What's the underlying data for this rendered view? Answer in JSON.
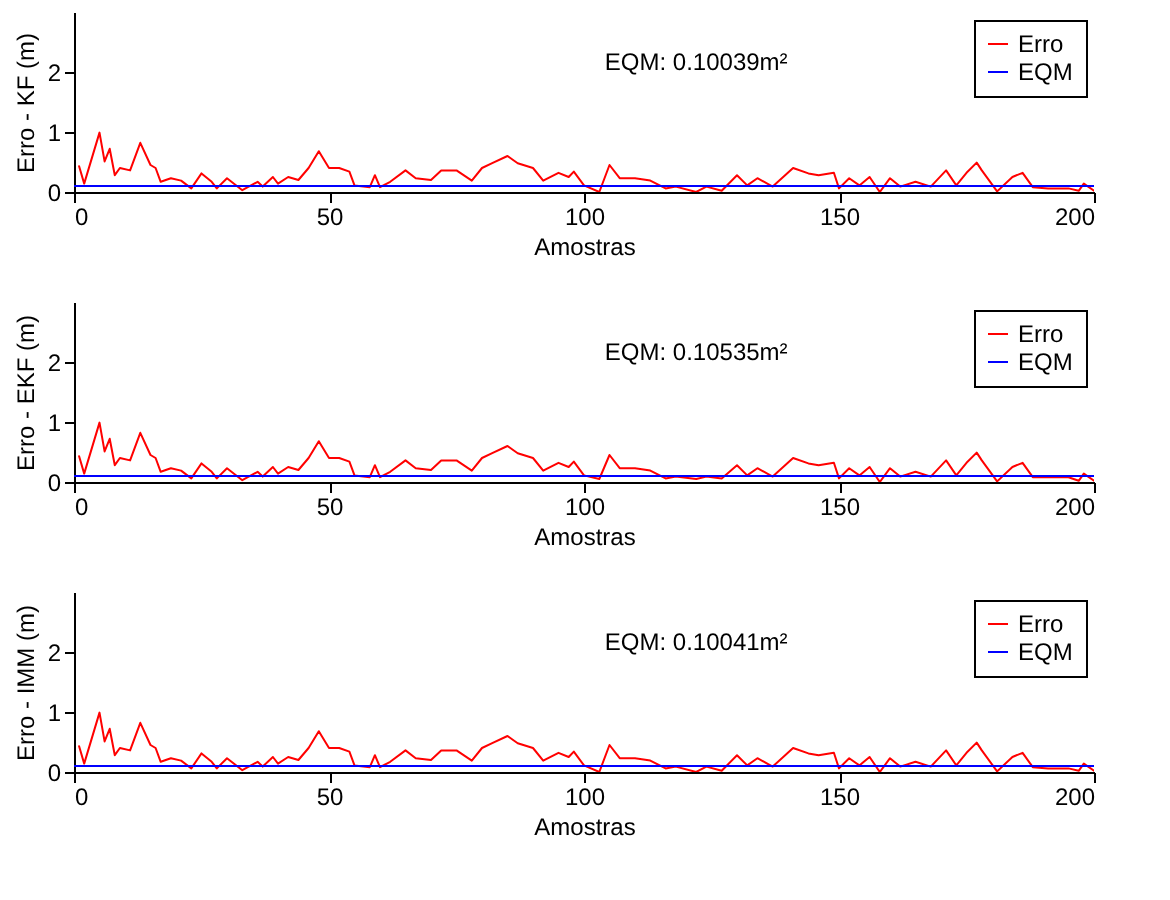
{
  "chart_data": [
    {
      "type": "line",
      "xlabel": "Amostras",
      "ylabel": "Erro - KF (m)",
      "xlim": [
        0,
        200
      ],
      "ylim": [
        0,
        3
      ],
      "xticks": [
        0,
        50,
        100,
        150,
        200
      ],
      "yticks": [
        0,
        1,
        2
      ],
      "grid": false,
      "legend": "top right",
      "annotations": [
        "EQM: 0.10039m²"
      ],
      "series": [
        {
          "name": "Erro",
          "color": "#ff0000",
          "x": [
            1,
            2,
            5,
            6,
            7,
            8,
            9,
            11,
            13,
            15,
            16,
            17,
            19,
            21,
            23,
            25,
            27,
            28,
            30,
            33,
            36,
            37,
            39,
            40,
            42,
            44,
            46,
            48,
            50,
            52,
            54,
            55,
            58,
            59,
            60,
            62,
            65,
            67,
            70,
            72,
            75,
            78,
            80,
            82,
            85,
            87,
            90,
            92,
            95,
            97,
            98,
            100,
            103,
            105,
            107,
            110,
            113,
            116,
            118,
            122,
            124,
            127,
            130,
            132,
            134,
            137,
            141,
            144,
            146,
            149,
            150,
            152,
            154,
            156,
            158,
            160,
            162,
            165,
            168,
            171,
            173,
            175,
            177,
            178,
            181,
            184,
            186,
            188,
            191,
            195,
            197,
            198,
            200
          ],
          "values": [
            0.43,
            0.14,
            0.99,
            0.51,
            0.72,
            0.28,
            0.4,
            0.36,
            0.82,
            0.45,
            0.4,
            0.17,
            0.23,
            0.19,
            0.06,
            0.31,
            0.17,
            0.06,
            0.23,
            0.03,
            0.17,
            0.09,
            0.25,
            0.14,
            0.25,
            0.2,
            0.4,
            0.68,
            0.4,
            0.4,
            0.34,
            0.11,
            0.08,
            0.28,
            0.08,
            0.17,
            0.36,
            0.23,
            0.2,
            0.36,
            0.36,
            0.19,
            0.4,
            0.48,
            0.6,
            0.48,
            0.4,
            0.19,
            0.32,
            0.25,
            0.34,
            0.11,
            0.0,
            0.45,
            0.23,
            0.23,
            0.19,
            0.06,
            0.09,
            0.0,
            0.09,
            0.02,
            0.28,
            0.11,
            0.23,
            0.09,
            0.4,
            0.31,
            0.28,
            0.32,
            0.06,
            0.23,
            0.11,
            0.25,
            0.0,
            0.23,
            0.09,
            0.17,
            0.09,
            0.36,
            0.11,
            0.32,
            0.49,
            0.36,
            0.01,
            0.25,
            0.32,
            0.08,
            0.06,
            0.06,
            0.02,
            0.14,
            0.02
          ]
        },
        {
          "name": "EQM",
          "color": "#0000ff",
          "x": [
            0,
            200
          ],
          "values": [
            0.1,
            0.1
          ]
        }
      ]
    },
    {
      "type": "line",
      "xlabel": "Amostras",
      "ylabel": "Erro - EKF (m)",
      "xlim": [
        0,
        200
      ],
      "ylim": [
        0,
        3
      ],
      "xticks": [
        0,
        50,
        100,
        150,
        200
      ],
      "yticks": [
        0,
        1,
        2
      ],
      "grid": false,
      "legend": "top right",
      "annotations": [
        "EQM: 0.10535m²"
      ],
      "series": [
        {
          "name": "Erro",
          "color": "#ff0000",
          "x": [
            1,
            2,
            5,
            6,
            7,
            8,
            9,
            11,
            13,
            15,
            16,
            17,
            19,
            21,
            23,
            25,
            27,
            28,
            30,
            33,
            36,
            37,
            39,
            40,
            42,
            44,
            46,
            48,
            50,
            52,
            54,
            55,
            58,
            59,
            60,
            62,
            65,
            67,
            70,
            72,
            75,
            78,
            80,
            82,
            85,
            87,
            90,
            92,
            95,
            97,
            98,
            100,
            103,
            105,
            107,
            110,
            113,
            116,
            118,
            122,
            124,
            127,
            130,
            132,
            134,
            137,
            141,
            144,
            146,
            149,
            150,
            152,
            154,
            156,
            158,
            160,
            162,
            165,
            168,
            171,
            173,
            175,
            177,
            178,
            181,
            184,
            186,
            188,
            191,
            195,
            197,
            198,
            200
          ],
          "values": [
            0.43,
            0.14,
            0.99,
            0.51,
            0.72,
            0.28,
            0.4,
            0.36,
            0.82,
            0.45,
            0.4,
            0.17,
            0.23,
            0.19,
            0.06,
            0.31,
            0.17,
            0.06,
            0.23,
            0.03,
            0.17,
            0.09,
            0.25,
            0.14,
            0.25,
            0.2,
            0.4,
            0.68,
            0.4,
            0.4,
            0.34,
            0.11,
            0.08,
            0.28,
            0.08,
            0.17,
            0.36,
            0.23,
            0.2,
            0.36,
            0.36,
            0.19,
            0.4,
            0.48,
            0.6,
            0.48,
            0.4,
            0.19,
            0.32,
            0.25,
            0.34,
            0.11,
            0.05,
            0.45,
            0.23,
            0.23,
            0.19,
            0.06,
            0.09,
            0.05,
            0.09,
            0.06,
            0.28,
            0.11,
            0.23,
            0.09,
            0.4,
            0.31,
            0.28,
            0.32,
            0.06,
            0.23,
            0.11,
            0.25,
            0.0,
            0.23,
            0.09,
            0.17,
            0.09,
            0.36,
            0.11,
            0.32,
            0.49,
            0.36,
            0.01,
            0.25,
            0.32,
            0.08,
            0.08,
            0.08,
            0.02,
            0.14,
            0.02
          ]
        },
        {
          "name": "EQM",
          "color": "#0000ff",
          "x": [
            0,
            200
          ],
          "values": [
            0.1,
            0.1
          ]
        }
      ]
    },
    {
      "type": "line",
      "xlabel": "Amostras",
      "ylabel": "Erro - IMM (m)",
      "xlim": [
        0,
        200
      ],
      "ylim": [
        0,
        3
      ],
      "xticks": [
        0,
        50,
        100,
        150,
        200
      ],
      "yticks": [
        0,
        1,
        2
      ],
      "grid": false,
      "legend": "top right",
      "annotations": [
        "EQM: 0.10041m²"
      ],
      "series": [
        {
          "name": "Erro",
          "color": "#ff0000",
          "x": [
            1,
            2,
            5,
            6,
            7,
            8,
            9,
            11,
            13,
            15,
            16,
            17,
            19,
            21,
            23,
            25,
            27,
            28,
            30,
            33,
            36,
            37,
            39,
            40,
            42,
            44,
            46,
            48,
            50,
            52,
            54,
            55,
            58,
            59,
            60,
            62,
            65,
            67,
            70,
            72,
            75,
            78,
            80,
            82,
            85,
            87,
            90,
            92,
            95,
            97,
            98,
            100,
            103,
            105,
            107,
            110,
            113,
            116,
            118,
            122,
            124,
            127,
            130,
            132,
            134,
            137,
            141,
            144,
            146,
            149,
            150,
            152,
            154,
            156,
            158,
            160,
            162,
            165,
            168,
            171,
            173,
            175,
            177,
            178,
            181,
            184,
            186,
            188,
            191,
            195,
            197,
            198,
            200
          ],
          "values": [
            0.43,
            0.14,
            0.99,
            0.51,
            0.72,
            0.28,
            0.4,
            0.36,
            0.82,
            0.45,
            0.4,
            0.17,
            0.23,
            0.19,
            0.06,
            0.31,
            0.17,
            0.06,
            0.23,
            0.03,
            0.17,
            0.09,
            0.25,
            0.14,
            0.25,
            0.2,
            0.4,
            0.68,
            0.4,
            0.4,
            0.34,
            0.11,
            0.08,
            0.28,
            0.08,
            0.17,
            0.36,
            0.23,
            0.2,
            0.36,
            0.36,
            0.19,
            0.4,
            0.48,
            0.6,
            0.48,
            0.4,
            0.19,
            0.32,
            0.25,
            0.34,
            0.11,
            0.0,
            0.45,
            0.23,
            0.23,
            0.19,
            0.06,
            0.09,
            0.0,
            0.09,
            0.02,
            0.28,
            0.11,
            0.23,
            0.09,
            0.4,
            0.31,
            0.28,
            0.32,
            0.06,
            0.23,
            0.11,
            0.25,
            0.0,
            0.23,
            0.09,
            0.17,
            0.09,
            0.36,
            0.11,
            0.32,
            0.49,
            0.36,
            0.01,
            0.25,
            0.32,
            0.08,
            0.06,
            0.06,
            0.02,
            0.14,
            0.02
          ]
        },
        {
          "name": "EQM",
          "color": "#0000ff",
          "x": [
            0,
            200
          ],
          "values": [
            0.1,
            0.1
          ]
        }
      ]
    }
  ]
}
